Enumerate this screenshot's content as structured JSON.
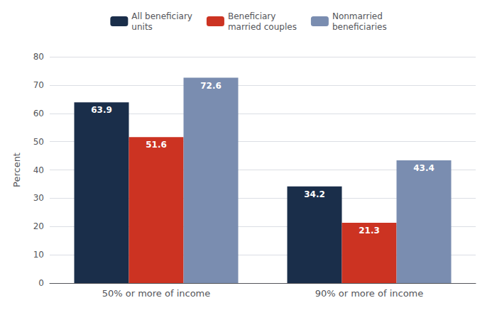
{
  "chart_data": {
    "type": "bar",
    "categories": [
      "50% or more of income",
      "90% or more of income"
    ],
    "series": [
      {
        "name": "All beneficiary\nunits",
        "color": "#1a2e4a",
        "values": [
          63.9,
          34.2
        ]
      },
      {
        "name": "Beneficiary\nmarried couples",
        "color": "#cc3322",
        "values": [
          51.6,
          21.3
        ]
      },
      {
        "name": "Nonmarried\nbeneficiaries",
        "color": "#7a8db0",
        "values": [
          72.6,
          43.4
        ]
      }
    ],
    "ylabel": "Percent",
    "ylim": [
      0,
      80
    ],
    "yticks": [
      0,
      10,
      20,
      30,
      40,
      50,
      60,
      70,
      80
    ],
    "grid": true,
    "legend": "top",
    "data_labels": true
  }
}
